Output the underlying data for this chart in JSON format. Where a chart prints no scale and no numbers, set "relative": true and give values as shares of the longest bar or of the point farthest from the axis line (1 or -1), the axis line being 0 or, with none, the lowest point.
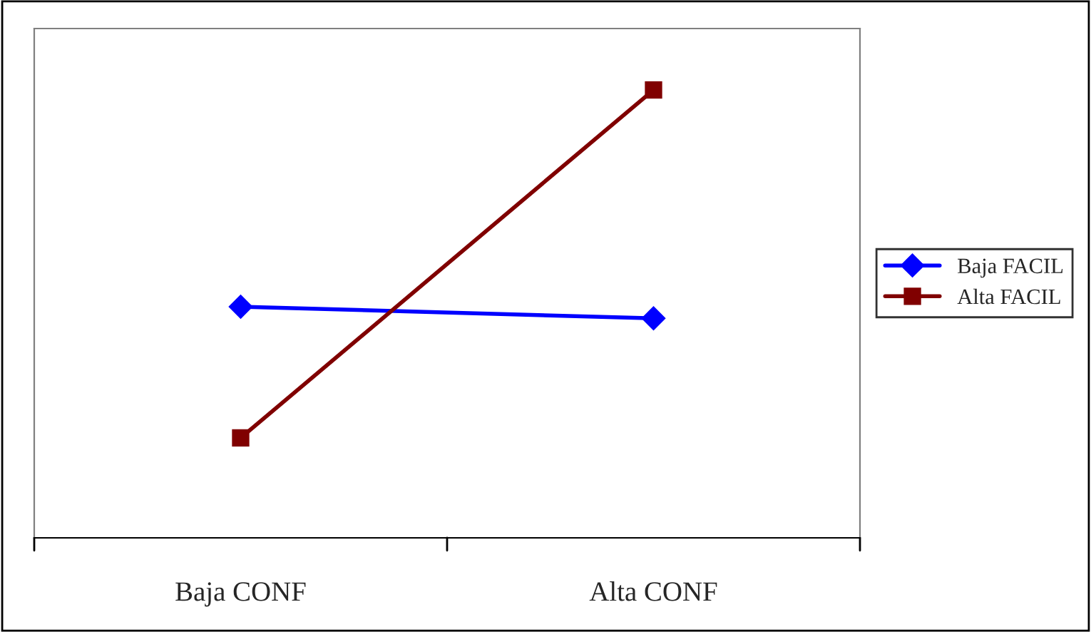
{
  "chart_data": {
    "type": "line",
    "relative": true,
    "categories": [
      "Baja CONF",
      "Alta CONF"
    ],
    "series": [
      {
        "name": "Baja FACIL",
        "color": "#0000ff",
        "values": [
          0.516,
          0.49
        ],
        "marker": "diamond"
      },
      {
        "name": "Alta FACIL",
        "color": "#800000",
        "values": [
          0.223,
          1.0
        ],
        "marker": "square"
      }
    ],
    "legend": "right",
    "grid": false,
    "line_style": "solid"
  }
}
